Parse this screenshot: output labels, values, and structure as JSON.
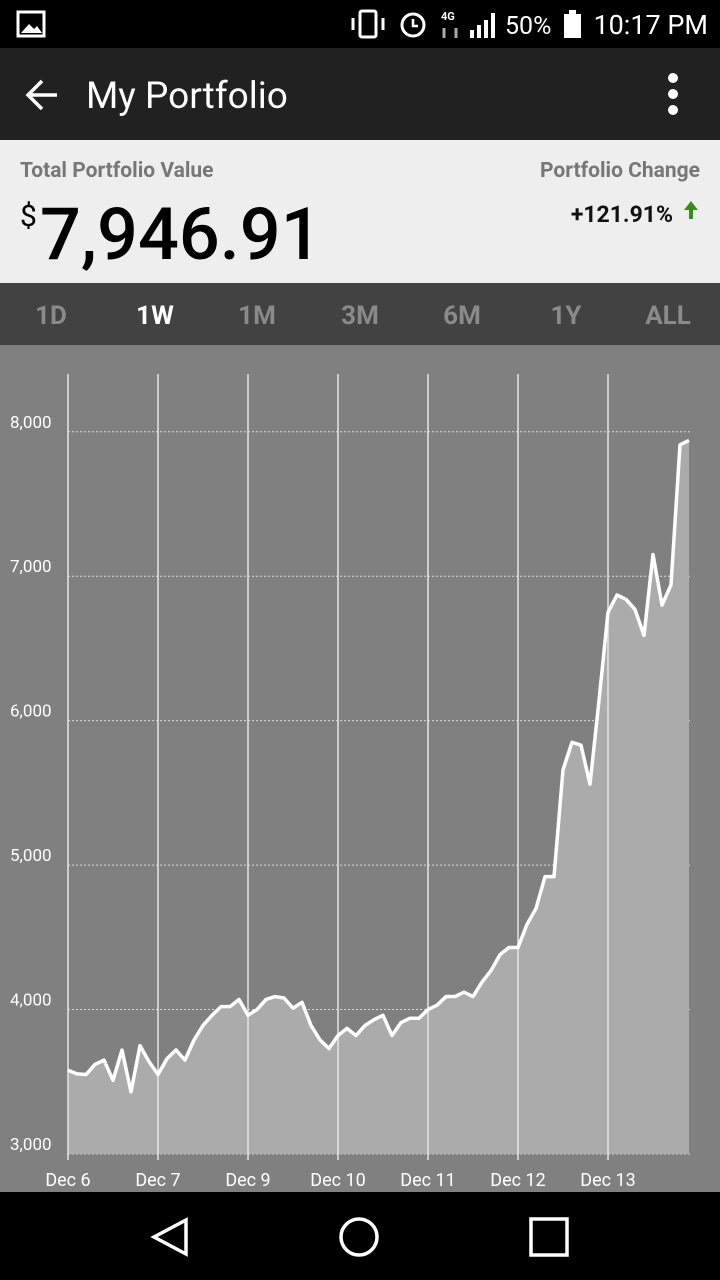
{
  "status_bar": {
    "battery": "50%",
    "time": "10:17 PM"
  },
  "header": {
    "title": "My Portfolio"
  },
  "summary": {
    "total_label": "Total Portfolio Value",
    "currency": "$",
    "total_value": "7,946.91",
    "change_label": "Portfolio Change",
    "change_value": "+121.91%"
  },
  "tabs": [
    "1D",
    "1W",
    "1M",
    "3M",
    "6M",
    "1Y",
    "ALL"
  ],
  "chart_data": {
    "type": "area",
    "categories": [
      "Dec 6",
      null,
      null,
      null,
      null,
      null,
      null,
      null,
      null,
      null,
      "Dec 7",
      null,
      null,
      null,
      null,
      null,
      null,
      null,
      null,
      null,
      "Dec 9",
      null,
      null,
      null,
      null,
      null,
      null,
      null,
      null,
      null,
      "Dec 10",
      null,
      null,
      null,
      null,
      null,
      null,
      null,
      null,
      null,
      "Dec 11",
      null,
      null,
      null,
      null,
      null,
      null,
      null,
      null,
      null,
      "Dec 12",
      null,
      null,
      null,
      null,
      null,
      null,
      null,
      null,
      null,
      "Dec 13",
      null,
      null,
      null,
      null,
      null,
      null,
      null,
      null,
      null
    ],
    "values": [
      3580,
      3555,
      3550,
      3620,
      3650,
      3510,
      3720,
      3430,
      3750,
      3640,
      3550,
      3660,
      3720,
      3650,
      3790,
      3890,
      3960,
      4020,
      4020,
      4070,
      3960,
      4000,
      4070,
      4090,
      4080,
      4010,
      4050,
      3890,
      3790,
      3730,
      3820,
      3870,
      3820,
      3890,
      3930,
      3960,
      3820,
      3910,
      3940,
      3940,
      4000,
      4030,
      4090,
      4090,
      4120,
      4090,
      4190,
      4270,
      4380,
      4430,
      4430,
      4590,
      4700,
      4920,
      4920,
      5660,
      5850,
      5830,
      5560,
      6140,
      6750,
      6870,
      6840,
      6770,
      6590,
      7150,
      6800,
      6940,
      7910,
      7940
    ],
    "line_color": "#ffffff",
    "fill_color": "#ababab",
    "ylim": [
      3000,
      8400
    ],
    "yticks": [
      {
        "value": 3000,
        "label": "3,000"
      },
      {
        "value": 4000,
        "label": "4,000"
      },
      {
        "value": 5000,
        "label": "5,000"
      },
      {
        "value": 6000,
        "label": "6,000"
      },
      {
        "value": 7000,
        "label": "7,000"
      },
      {
        "value": 8000,
        "label": "8,000"
      }
    ],
    "grid": true
  }
}
